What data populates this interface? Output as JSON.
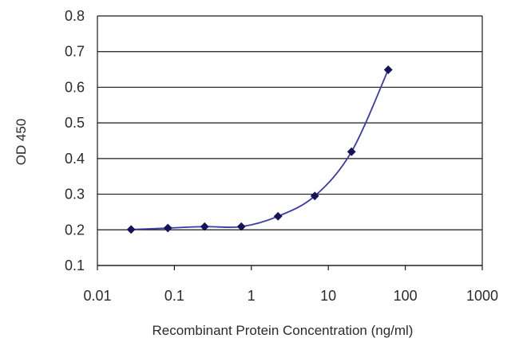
{
  "chart_data": {
    "type": "line",
    "title": "",
    "xlabel": "Recombinant Protein Concentration (ng/ml)",
    "ylabel": "OD 450",
    "xscale": "log",
    "xlim": [
      0.01,
      1000
    ],
    "ylim": [
      0.1,
      0.8
    ],
    "grid": "horizontal",
    "legend": "none",
    "x_ticks": [
      0.01,
      0.1,
      1,
      10,
      100,
      1000
    ],
    "x_tick_labels": [
      "0.01",
      "0.1",
      "1",
      "10",
      "100",
      "1000"
    ],
    "y_ticks": [
      0.1,
      0.2,
      0.3,
      0.4,
      0.5,
      0.6,
      0.7,
      0.8
    ],
    "y_tick_labels": [
      "0.1",
      "0.2",
      "0.3",
      "0.4",
      "0.5",
      "0.6",
      "0.7",
      "0.8"
    ],
    "series": [
      {
        "x": [
          0.0274,
          0.0823,
          0.2469,
          0.7407,
          2.222,
          6.667,
          20,
          60
        ],
        "y": [
          0.201,
          0.205,
          0.209,
          0.209,
          0.238,
          0.295,
          0.419,
          0.649
        ],
        "color": "#1f1f7a"
      }
    ],
    "colors": {
      "line": "#3a3aa8",
      "marker": "#14145a",
      "grid": "#1a1a1a",
      "frame": "#1a1a1a"
    }
  }
}
